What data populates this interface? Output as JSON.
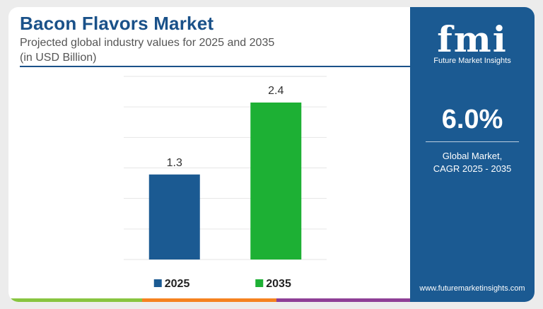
{
  "header": {
    "title": "Bacon Flavors Market",
    "subtitle_line1": "Projected global industry values for 2025 and 2035",
    "subtitle_line2": "(in USD Billion)"
  },
  "chart_data": {
    "type": "bar",
    "categories": [
      "2025",
      "2035"
    ],
    "values": [
      1.3,
      2.4
    ],
    "data_labels": [
      "1.3",
      "2.4"
    ],
    "colors": [
      "#1b5a92",
      "#1db034"
    ],
    "ylim": [
      0,
      2.8
    ],
    "grid": true,
    "legend": "bottom",
    "xlabel": "",
    "ylabel": ""
  },
  "sidebar": {
    "logo_text": "fmi",
    "logo_subtext": "Future Market Insights",
    "cagr_value": "6.0%",
    "cagr_label_line1": "Global Market,",
    "cagr_label_line2": "CAGR 2025 - 2035",
    "website": "www.futuremarketinsights.com",
    "background_color": "#1b5a92"
  },
  "footer_bar_colors": [
    "#88c540",
    "#f58220",
    "#8e3f96"
  ]
}
